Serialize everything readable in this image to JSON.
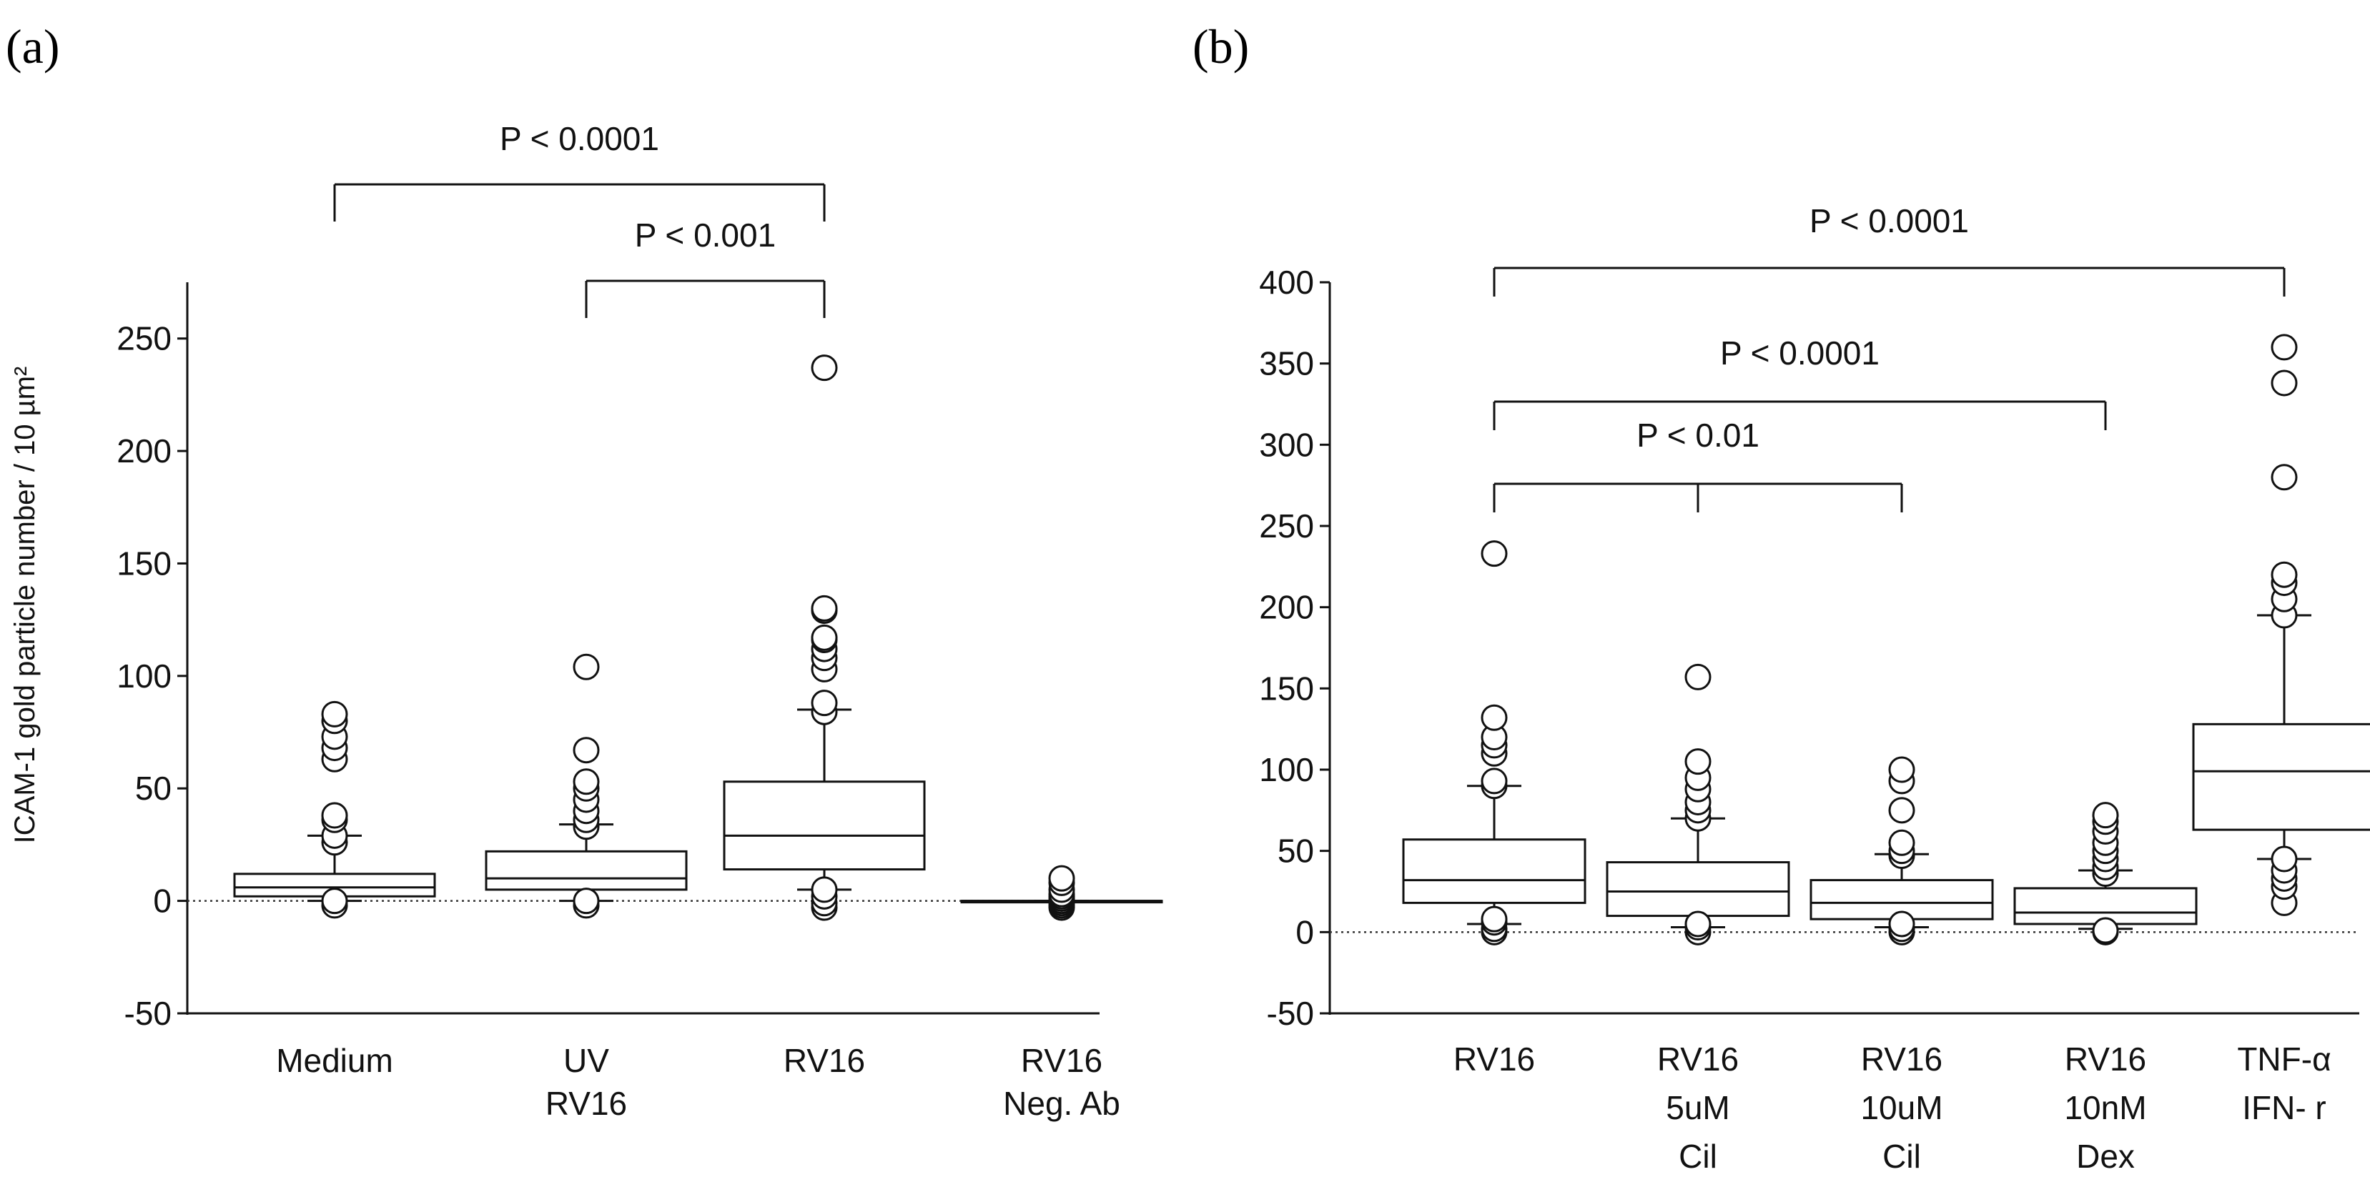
{
  "chart_data": [
    {
      "panel_label": "(a)",
      "type": "boxplot",
      "ylabel": "ICAM-1 gold particle number / 10 µm²",
      "ylim": [
        -50,
        275
      ],
      "yticks": [
        -50,
        0,
        50,
        100,
        150,
        200,
        250
      ],
      "baseline_dotted": 0,
      "categories": [
        {
          "lines": [
            "Medium"
          ]
        },
        {
          "lines": [
            "UV",
            "RV16"
          ]
        },
        {
          "lines": [
            "RV16"
          ]
        },
        {
          "lines": [
            "RV16",
            "Neg. Ab"
          ]
        }
      ],
      "boxes": [
        {
          "whisker_low": 0,
          "q1": 2,
          "median": 6,
          "q3": 12,
          "whisker_high": 29,
          "outliers": [
            -2,
            0,
            26,
            29,
            36,
            38,
            63,
            68,
            73,
            80,
            83
          ]
        },
        {
          "whisker_low": 0,
          "q1": 5,
          "median": 10,
          "q3": 22,
          "whisker_high": 34,
          "outliers": [
            -2,
            0,
            33,
            36,
            40,
            45,
            50,
            53,
            67,
            104
          ]
        },
        {
          "whisker_low": 5,
          "q1": 14,
          "median": 29,
          "q3": 53,
          "whisker_high": 85,
          "outliers": [
            -3,
            -1,
            2,
            5,
            84,
            88,
            103,
            108,
            112,
            116,
            117,
            129,
            130,
            237
          ]
        },
        {
          "whisker_low": 0,
          "q1": 0,
          "median": 0,
          "q3": 0,
          "whisker_high": 0,
          "outliers": [
            -3,
            -2,
            -1,
            0,
            1,
            2,
            3,
            5,
            8,
            10
          ]
        }
      ],
      "significance": [
        {
          "from": 0,
          "to": 2,
          "label": "P < 0.0001"
        },
        {
          "from": 1,
          "to": 2,
          "label": "P < 0.001"
        }
      ]
    },
    {
      "panel_label": "(b)",
      "type": "boxplot",
      "ylabel": "",
      "ylim": [
        -50,
        400
      ],
      "yticks": [
        -50,
        0,
        50,
        100,
        150,
        200,
        250,
        300,
        350,
        400
      ],
      "baseline_dotted": 0,
      "categories": [
        {
          "lines": [
            "RV16"
          ]
        },
        {
          "lines": [
            "RV16",
            "5uM",
            "Cil"
          ]
        },
        {
          "lines": [
            "RV16",
            "10uM",
            "Cil"
          ]
        },
        {
          "lines": [
            "RV16",
            "10nM",
            "Dex"
          ]
        },
        {
          "lines": [
            "TNF-α",
            "IFN- r"
          ]
        }
      ],
      "boxes": [
        {
          "whisker_low": 5,
          "q1": 18,
          "median": 32,
          "q3": 57,
          "whisker_high": 90,
          "outliers": [
            0,
            2,
            6,
            8,
            90,
            93,
            110,
            115,
            120,
            132,
            233
          ]
        },
        {
          "whisker_low": 3,
          "q1": 10,
          "median": 25,
          "q3": 43,
          "whisker_high": 70,
          "outliers": [
            0,
            3,
            5,
            70,
            75,
            80,
            88,
            95,
            105,
            157
          ]
        },
        {
          "whisker_low": 3,
          "q1": 8,
          "median": 18,
          "q3": 32,
          "whisker_high": 48,
          "outliers": [
            0,
            2,
            5,
            47,
            50,
            55,
            75,
            93,
            100
          ]
        },
        {
          "whisker_low": 2,
          "q1": 5,
          "median": 12,
          "q3": 27,
          "whisker_high": 38,
          "outliers": [
            0,
            1,
            36,
            40,
            45,
            50,
            55,
            62,
            68,
            72
          ]
        },
        {
          "whisker_low": 45,
          "q1": 63,
          "median": 99,
          "q3": 128,
          "whisker_high": 195,
          "outliers": [
            18,
            28,
            33,
            38,
            45,
            195,
            205,
            215,
            220,
            280,
            338,
            360
          ]
        }
      ],
      "significance": [
        {
          "from": 0,
          "to": 4,
          "label": "P < 0.0001",
          "ticks": [
            0,
            4
          ]
        },
        {
          "from": 0,
          "to": 3,
          "label": "P < 0.0001",
          "ticks": [
            0,
            3
          ]
        },
        {
          "from": 0,
          "to": 2,
          "label": "P < 0.01",
          "ticks": [
            0,
            1,
            2
          ]
        }
      ]
    }
  ]
}
